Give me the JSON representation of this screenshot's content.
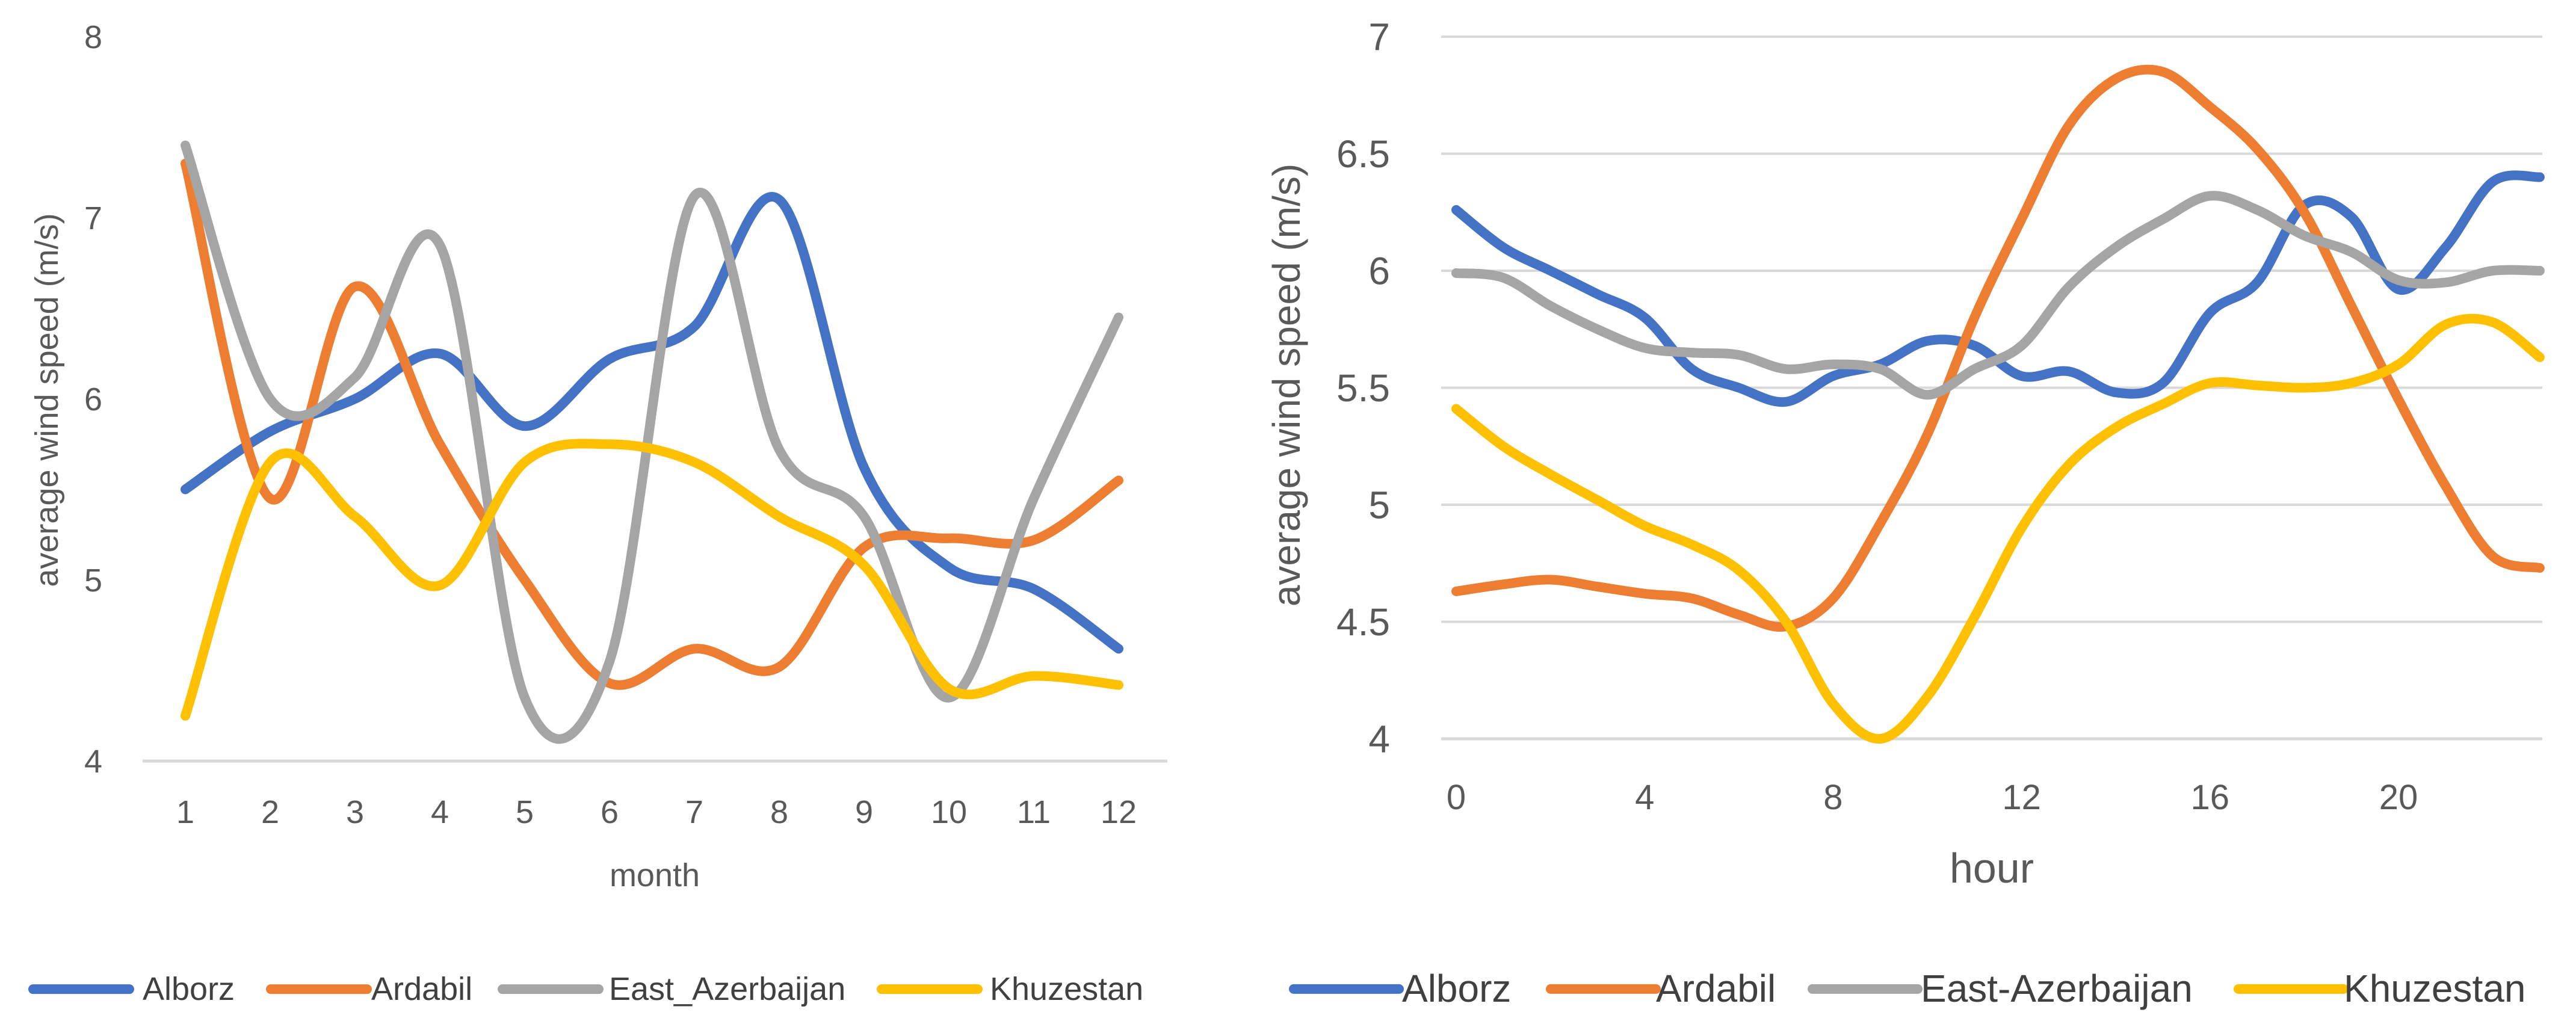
{
  "chart_data": [
    {
      "type": "line",
      "title": "",
      "xlabel": "month",
      "ylabel": "average wind speed (m/s)",
      "ylim": [
        4,
        8
      ],
      "yticks": [
        "4",
        "5",
        "6",
        "7",
        "8"
      ],
      "x": [
        1,
        2,
        3,
        4,
        5,
        6,
        7,
        8,
        9,
        10,
        11,
        12
      ],
      "xtick_labels": [
        "1",
        "2",
        "3",
        "4",
        "5",
        "6",
        "7",
        "8",
        "9",
        "10",
        "11",
        "12"
      ],
      "grid": false,
      "legend_position": "bottom",
      "series": [
        {
          "name": "Alborz",
          "color": "#4472C4",
          "values": [
            5.5,
            5.82,
            6.0,
            6.25,
            5.85,
            6.22,
            6.4,
            7.1,
            5.62,
            5.07,
            4.95,
            4.62
          ]
        },
        {
          "name": "Ardabil",
          "color": "#ED7D31",
          "values": [
            7.3,
            5.45,
            6.62,
            5.75,
            5.0,
            4.43,
            4.62,
            4.52,
            5.18,
            5.23,
            5.22,
            5.55
          ]
        },
        {
          "name": "East_Azerbaijan",
          "color": "#A5A5A5",
          "values": [
            7.4,
            6.0,
            6.12,
            6.85,
            4.35,
            4.55,
            7.12,
            5.72,
            5.35,
            4.35,
            5.45,
            6.45
          ]
        },
        {
          "name": "Khuzestan",
          "color": "#FFC000",
          "values": [
            4.25,
            5.65,
            5.35,
            4.97,
            5.65,
            5.75,
            5.65,
            5.35,
            5.08,
            4.4,
            4.47,
            4.42
          ]
        }
      ]
    },
    {
      "type": "line",
      "title": "",
      "xlabel": "hour",
      "ylabel": "average wind speed (m/s)",
      "ylim": [
        4,
        7
      ],
      "yticks": [
        "4",
        "4.5",
        "5",
        "5.5",
        "6",
        "6.5",
        "7"
      ],
      "xlim": [
        0,
        23
      ],
      "x": [
        0,
        1,
        2,
        3,
        4,
        5,
        6,
        7,
        8,
        9,
        10,
        11,
        12,
        13,
        14,
        15,
        16,
        17,
        18,
        19,
        20,
        21,
        22,
        23
      ],
      "xticks": [
        0,
        4,
        8,
        12,
        16,
        20
      ],
      "xtick_labels": [
        "0",
        "4",
        "8",
        "12",
        "16",
        "20"
      ],
      "grid": true,
      "legend_position": "bottom",
      "series": [
        {
          "name": "Alborz",
          "color": "#4472C4",
          "values": [
            6.26,
            6.1,
            6.0,
            5.9,
            5.8,
            5.58,
            5.5,
            5.44,
            5.55,
            5.6,
            5.7,
            5.68,
            5.55,
            5.57,
            5.48,
            5.52,
            5.82,
            5.95,
            6.28,
            6.23,
            5.92,
            6.1,
            6.38,
            6.4
          ]
        },
        {
          "name": "Ardabil",
          "color": "#ED7D31",
          "values": [
            4.63,
            4.66,
            4.68,
            4.65,
            4.62,
            4.6,
            4.53,
            4.48,
            4.6,
            4.92,
            5.3,
            5.8,
            6.22,
            6.62,
            6.82,
            6.85,
            6.7,
            6.52,
            6.25,
            5.85,
            5.45,
            5.08,
            4.78,
            4.73
          ]
        },
        {
          "name": "East-Azerbaijan",
          "color": "#A5A5A5",
          "values": [
            5.99,
            5.97,
            5.85,
            5.75,
            5.67,
            5.65,
            5.64,
            5.58,
            5.6,
            5.58,
            5.47,
            5.58,
            5.68,
            5.93,
            6.1,
            6.22,
            6.32,
            6.26,
            6.15,
            6.08,
            5.96,
            5.95,
            6.0,
            6.0
          ]
        },
        {
          "name": "Khuzestan",
          "color": "#FFC000",
          "values": [
            5.41,
            5.25,
            5.13,
            5.02,
            4.91,
            4.83,
            4.72,
            4.5,
            4.15,
            4.0,
            4.18,
            4.52,
            4.9,
            5.17,
            5.33,
            5.43,
            5.52,
            5.51,
            5.5,
            5.52,
            5.6,
            5.77,
            5.78,
            5.63
          ]
        }
      ]
    }
  ]
}
